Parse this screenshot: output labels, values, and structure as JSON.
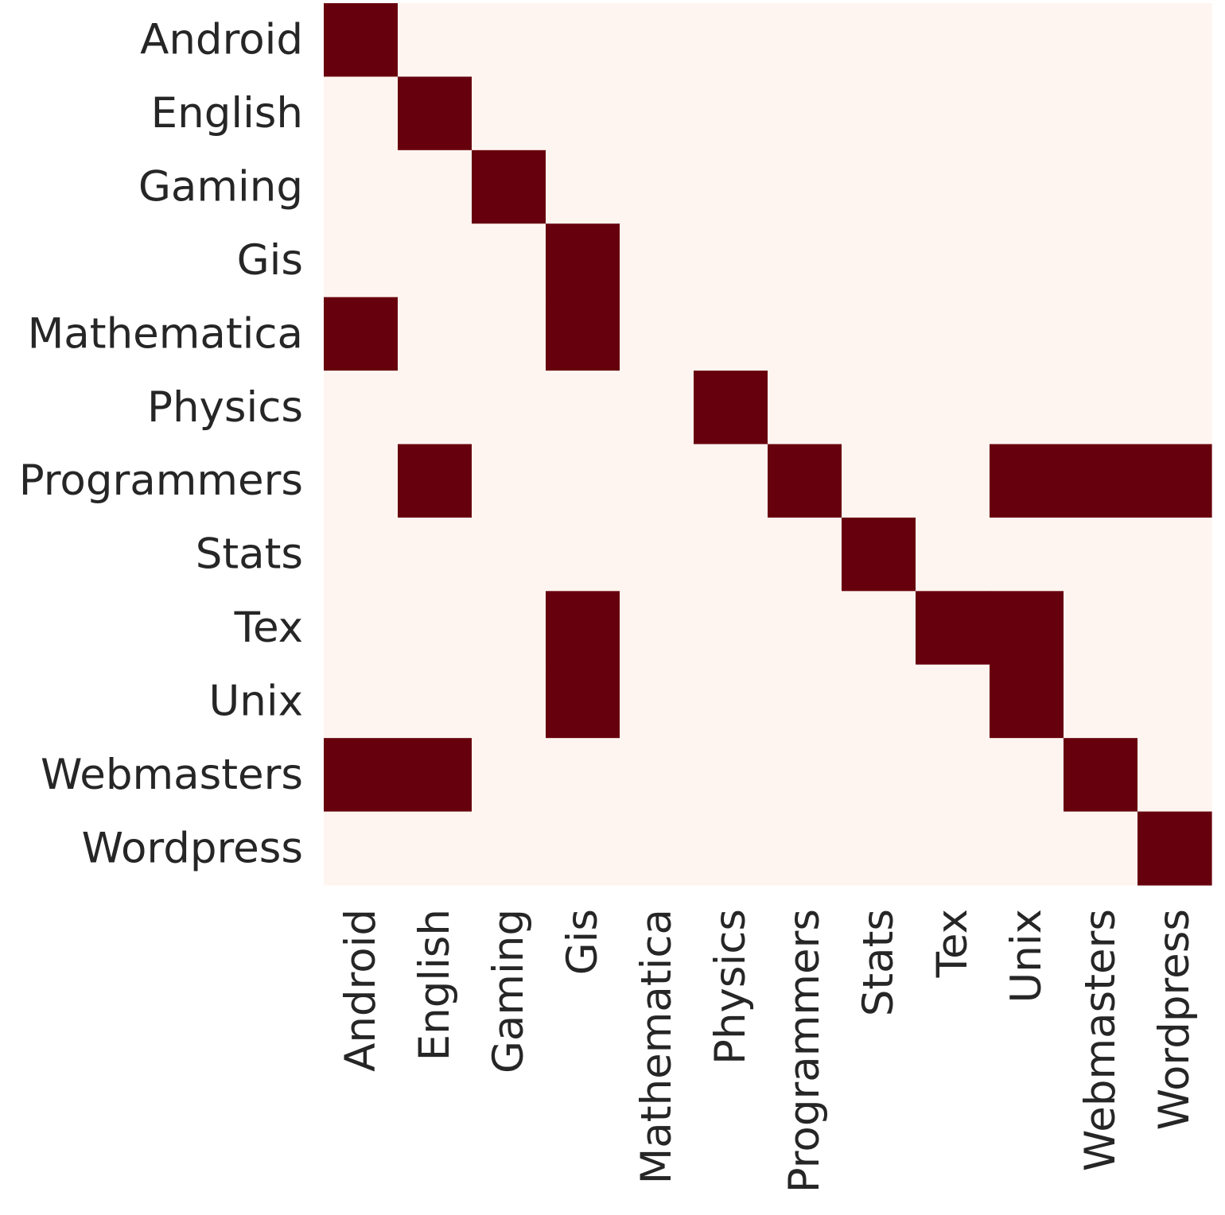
{
  "chart_data": {
    "type": "heatmap",
    "rows": [
      "Android",
      "English",
      "Gaming",
      "Gis",
      "Mathematica",
      "Physics",
      "Programmers",
      "Stats",
      "Tex",
      "Unix",
      "Webmasters",
      "Wordpress"
    ],
    "columns": [
      "Android",
      "English",
      "Gaming",
      "Gis",
      "Mathematica",
      "Physics",
      "Programmers",
      "Stats",
      "Tex",
      "Unix",
      "Webmasters",
      "Wordpress"
    ],
    "values": [
      [
        1,
        0,
        0,
        0,
        0,
        0,
        0,
        0,
        0,
        0,
        0,
        0
      ],
      [
        0,
        1,
        0,
        0,
        0,
        0,
        0,
        0,
        0,
        0,
        0,
        0
      ],
      [
        0,
        0,
        1,
        0,
        0,
        0,
        0,
        0,
        0,
        0,
        0,
        0
      ],
      [
        0,
        0,
        0,
        1,
        0,
        0,
        0,
        0,
        0,
        0,
        0,
        0
      ],
      [
        1,
        0,
        0,
        1,
        0,
        0,
        0,
        0,
        0,
        0,
        0,
        0
      ],
      [
        0,
        0,
        0,
        0,
        0,
        1,
        0,
        0,
        0,
        0,
        0,
        0
      ],
      [
        0,
        1,
        0,
        0,
        0,
        0,
        1,
        0,
        0,
        1,
        1,
        1
      ],
      [
        0,
        0,
        0,
        0,
        0,
        0,
        0,
        1,
        0,
        0,
        0,
        0
      ],
      [
        0,
        0,
        0,
        1,
        0,
        0,
        0,
        0,
        1,
        1,
        0,
        0
      ],
      [
        0,
        0,
        0,
        1,
        0,
        0,
        0,
        0,
        0,
        1,
        0,
        0
      ],
      [
        1,
        1,
        0,
        0,
        0,
        0,
        0,
        0,
        0,
        0,
        1,
        0
      ],
      [
        0,
        0,
        0,
        0,
        0,
        0,
        0,
        0,
        0,
        0,
        0,
        1
      ]
    ],
    "colors": {
      "low": "#fff5f0",
      "high": "#67000d",
      "text": "#262626"
    },
    "colorbar": false,
    "grid": false
  }
}
